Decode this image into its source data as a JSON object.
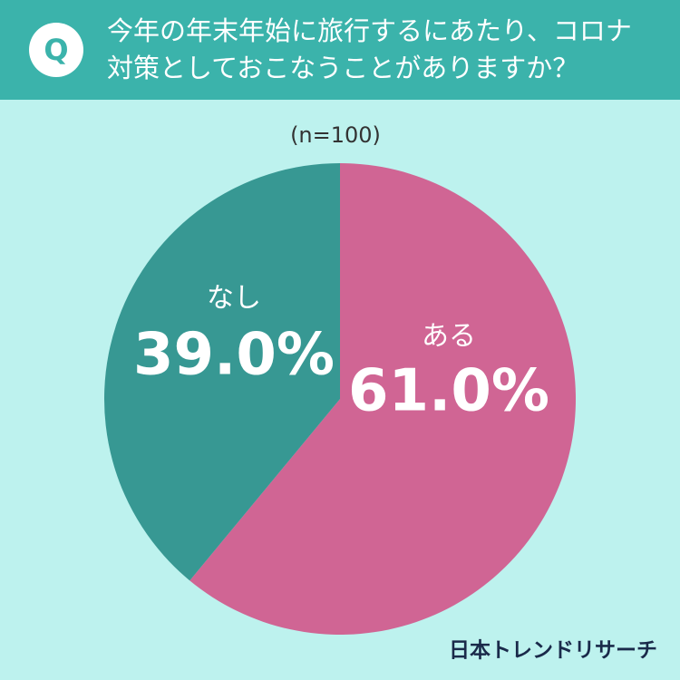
{
  "badge": "Q",
  "chart_data": {
    "type": "pie",
    "title": "今年の年末年始に旅行するにあたり、コロナ対策としておこなうことがありますか？",
    "subtitle": "(n=100)",
    "categories": [
      "ある",
      "なし"
    ],
    "values": [
      61.0,
      39.0
    ],
    "value_labels": [
      "61.0%",
      "39.0%"
    ],
    "colors": [
      "#d06594",
      "#379893"
    ],
    "start": "top",
    "direction": "clockwise"
  },
  "source": "日本トレンドリサーチ"
}
